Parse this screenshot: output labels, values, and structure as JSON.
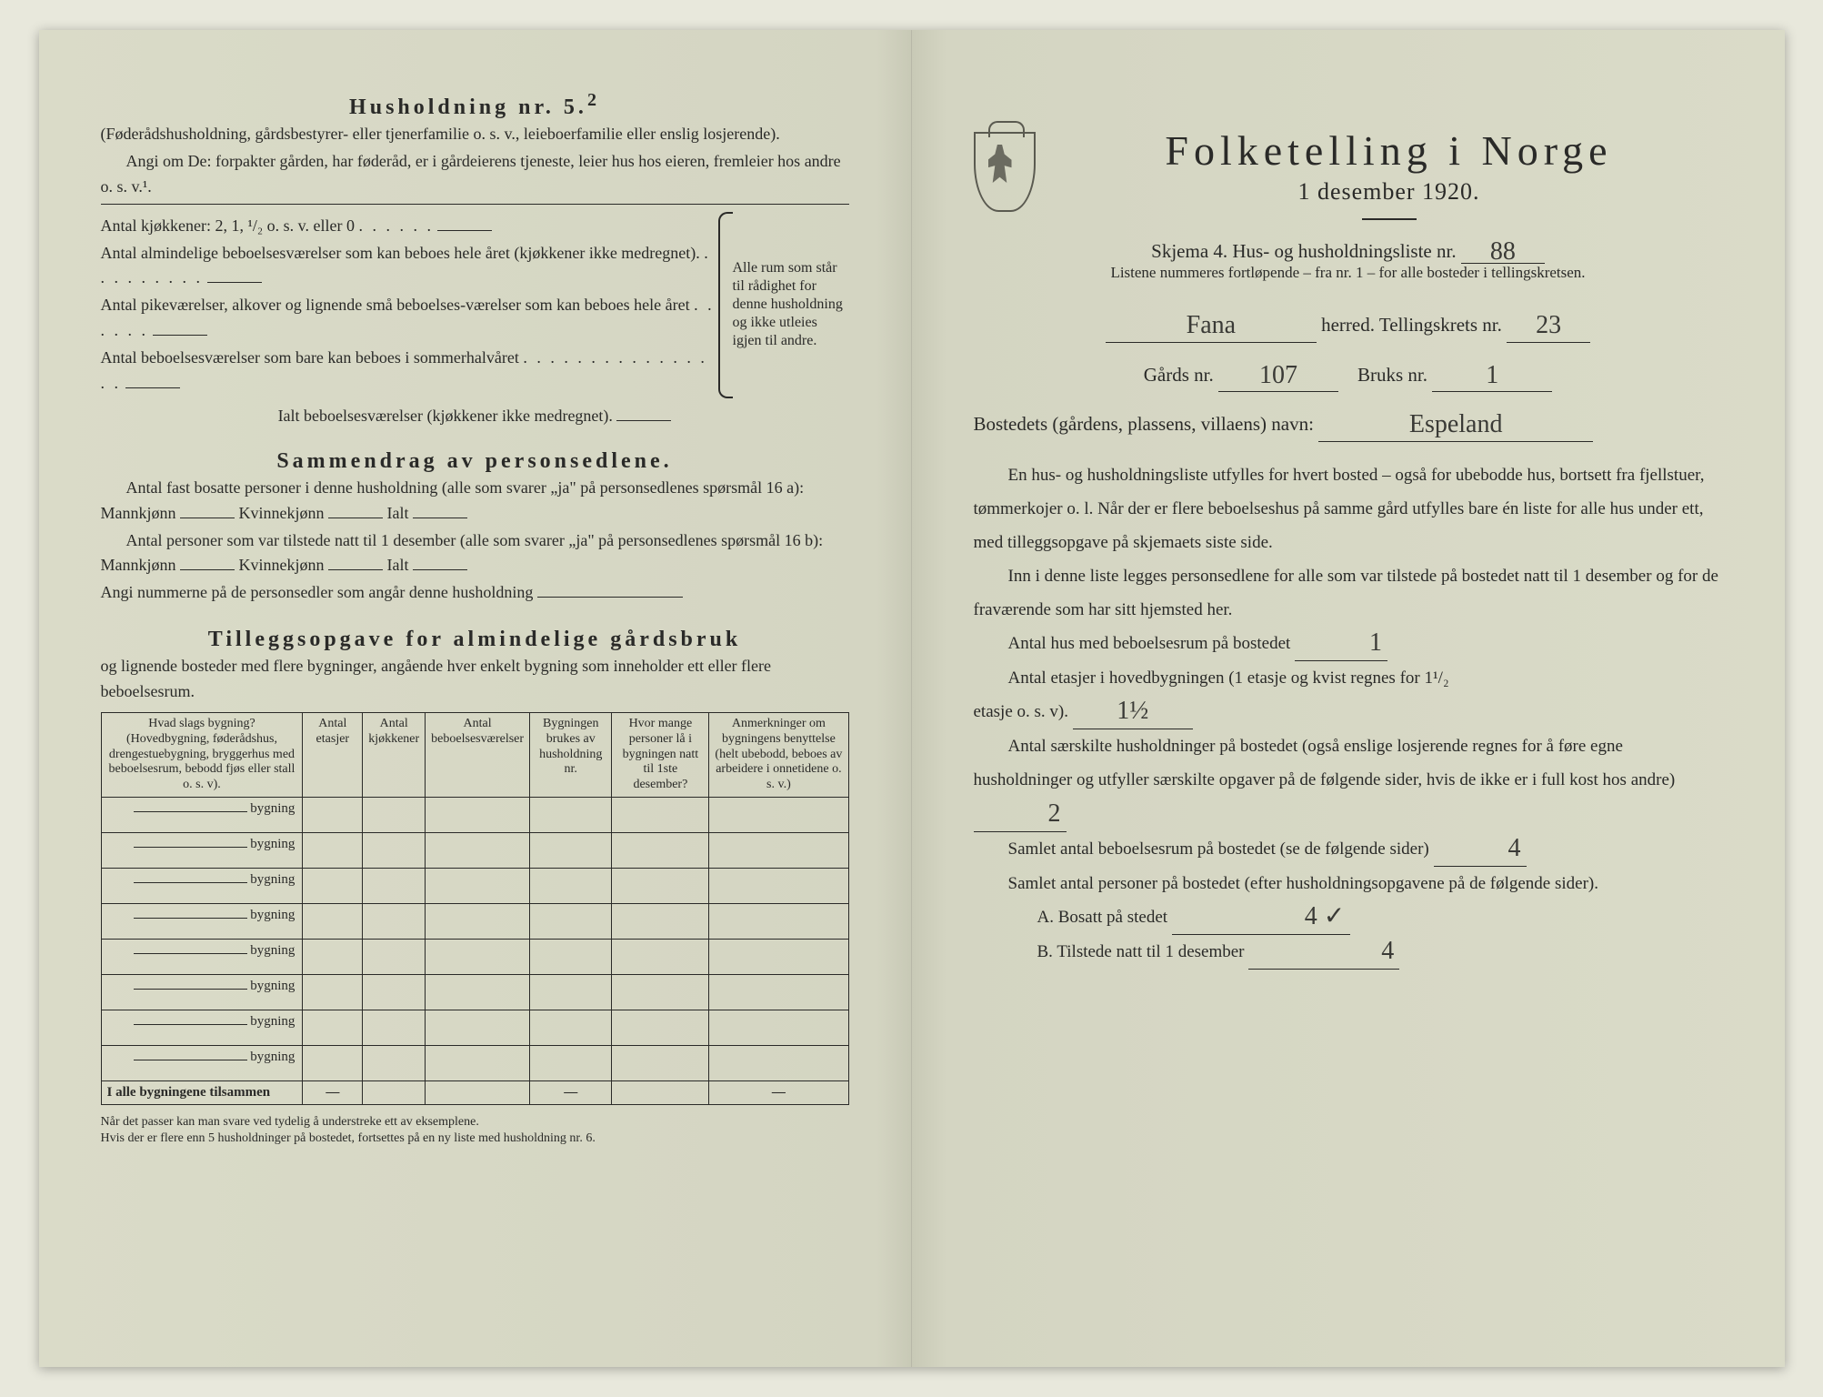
{
  "left": {
    "heading_husholdning": "Husholdning nr. 5.",
    "heading_sup": "2",
    "note1": "(Føderådshusholdning, gårdsbestyrer- eller tjenerfamilie o. s. v., leieboerfamilie eller enslig losjerende).",
    "note2": "Angi om De:  forpakter gården, har føderåd, er i gårdeierens tjeneste, leier hus hos eieren, fremleier hos andre o. s. v.¹.",
    "kitchens_label": "Antal kjøkkener: 2, 1, ¹/₂ o. s. v. eller 0",
    "rooms1": "Antal almindelige beboelsesværelser som kan beboes hele året (kjøkkener ikke medregnet).",
    "rooms2": "Antal pikeværelser, alkover og lignende små beboelses-værelser som kan beboes hele året",
    "rooms3": "Antal beboelsesværelser som bare kan beboes i sommerhalvåret",
    "brace_text": "Alle rum som står til rådighet for denne husholdning og ikke utleies igjen til andre.",
    "ialt_rooms": "Ialt beboelsesværelser  (kjøkkener ikke medregnet).",
    "heading_sammen": "Sammendrag av personsedlene.",
    "sammen1": "Antal fast bosatte personer i denne husholdning (alle som svarer „ja\" på personsedlenes spørsmål 16 a): Mannkjønn",
    "kvinne": "Kvinnekjønn",
    "ialt": "Ialt",
    "sammen2": "Antal personer som var tilstede natt til 1 desember (alle som svarer „ja\" på personsedlenes spørsmål 16 b): Mannkjønn",
    "sammen3": "Angi nummerne på de personsedler som angår denne husholdning",
    "heading_tillegg1": "Tilleggsopgave for almindelige gårdsbruk",
    "heading_tillegg2": "og lignende bosteder med flere bygninger, angående hver enkelt bygning som inneholder ett eller flere beboelsesrum.",
    "table": {
      "h1": "Hvad slags bygning?\n(Hovedbygning, føderådshus, drengestuebygning, bryggerhus med beboelsesrum, bebodd fjøs eller stall o. s. v).",
      "h2": "Antal etasjer",
      "h3": "Antal kjøkkener",
      "h4": "Antal beboelsesværelser",
      "h5": "Bygningen brukes av husholdning nr.",
      "h6": "Hvor mange personer lå i bygningen natt til 1ste desember?",
      "h7": "Anmerkninger om bygningens benyttelse (helt ubebodd, beboes av arbeidere i onnetidene o. s. v.)",
      "rowlabel": "bygning",
      "totalrow": "I alle bygningene tilsammen",
      "dash": "—"
    },
    "footnote": "Når det passer kan man svare ved tydelig å understreke ett av eksemplene.\nHvis der er flere enn 5 husholdninger på bostedet, fortsettes på en ny liste med husholdning nr. 6."
  },
  "right": {
    "title": "Folketelling i Norge",
    "subtitle": "1 desember 1920.",
    "skjema_pre": "Skjema 4.   Hus- og husholdningsliste nr.",
    "skjema_val": "88",
    "fine": "Listene nummeres fortløpende – fra nr. 1 – for alle bosteder i tellingskretsen.",
    "herred_val": "Fana",
    "herred_lbl": "herred.   Tellingskrets nr.",
    "krets_val": "23",
    "gard_lbl": "Gårds nr.",
    "gard_val": "107",
    "bruk_lbl": "Bruks nr.",
    "bruk_val": "1",
    "bosted_lbl": "Bostedets (gårdens, plassens, villaens) navn:",
    "bosted_val": "Espeland",
    "p1": "En hus- og husholdningsliste utfylles for hvert bosted – også for ubebodde hus, bortsett fra fjellstuer, tømmerkojer o. l.  Når der er flere beboelseshus på samme gård utfylles bare én liste for alle hus under ett, med tilleggsopgave på skjemaets siste side.",
    "p2": "Inn i denne liste legges personsedlene for alle som var tilstede på bostedet natt til 1 desember og for de fraværende som har sitt hjemsted her.",
    "q1": "Antal hus med beboelsesrum på bostedet",
    "q1v": "1",
    "q2a": "Antal etasjer i hovedbygningen (1 etasje og kvist regnes for 1¹/₂",
    "q2b": "etasje o. s. v).",
    "q2v": "1½",
    "q3": "Antal særskilte husholdninger på bostedet (også enslige losjerende regnes for å føre egne husholdninger og utfyller særskilte opgaver på de følgende sider, hvis de ikke er i full kost hos andre)",
    "q3v": "2",
    "q4": "Samlet antal beboelsesrum på bostedet (se de følgende sider)",
    "q4v": "4",
    "q5": "Samlet antal personer på bostedet (efter husholdningsopgavene på de følgende sider).",
    "qa": "A.  Bosatt på stedet",
    "qav": "4 ✓",
    "qb": "B.  Tilstede natt til 1 desember",
    "qbv": "4"
  }
}
